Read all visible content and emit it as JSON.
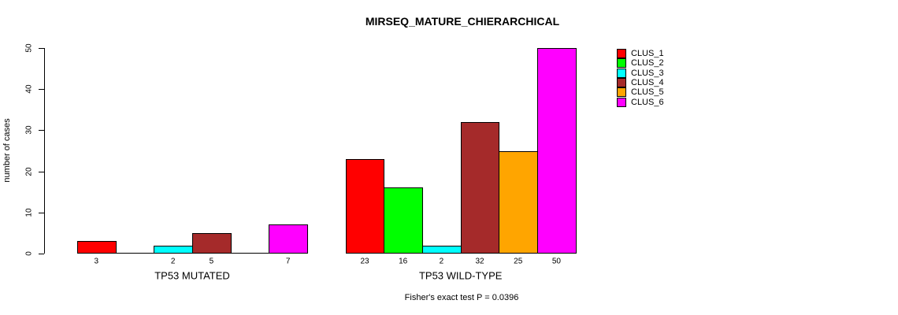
{
  "chart_data": {
    "type": "bar",
    "title": "MIRSEQ_MATURE_CHIERARCHICAL",
    "ylabel": "number of cases",
    "xlabel": "",
    "ylim": [
      0,
      50
    ],
    "y_ticks": [
      0,
      10,
      20,
      30,
      40,
      50
    ],
    "grid": false,
    "legend_position": "top-right",
    "series": [
      {
        "name": "CLUS_1",
        "color": "#FF0000"
      },
      {
        "name": "CLUS_2",
        "color": "#00FF00"
      },
      {
        "name": "CLUS_3",
        "color": "#00FFFF"
      },
      {
        "name": "CLUS_4",
        "color": "#A52A2A"
      },
      {
        "name": "CLUS_5",
        "color": "#FFA500"
      },
      {
        "name": "CLUS_6",
        "color": "#FF00FF"
      }
    ],
    "groups": [
      {
        "label": "TP53 MUTATED",
        "values": [
          3,
          0,
          2,
          5,
          0,
          7
        ],
        "bar_labels": [
          "3",
          "",
          "2",
          "5",
          "",
          "7"
        ]
      },
      {
        "label": "TP53 WILD-TYPE",
        "values": [
          23,
          16,
          2,
          32,
          25,
          50
        ],
        "bar_labels": [
          "23",
          "16",
          "2",
          "32",
          "25",
          "50"
        ]
      }
    ],
    "annotation": "Fisher's exact test P = 0.0396"
  }
}
